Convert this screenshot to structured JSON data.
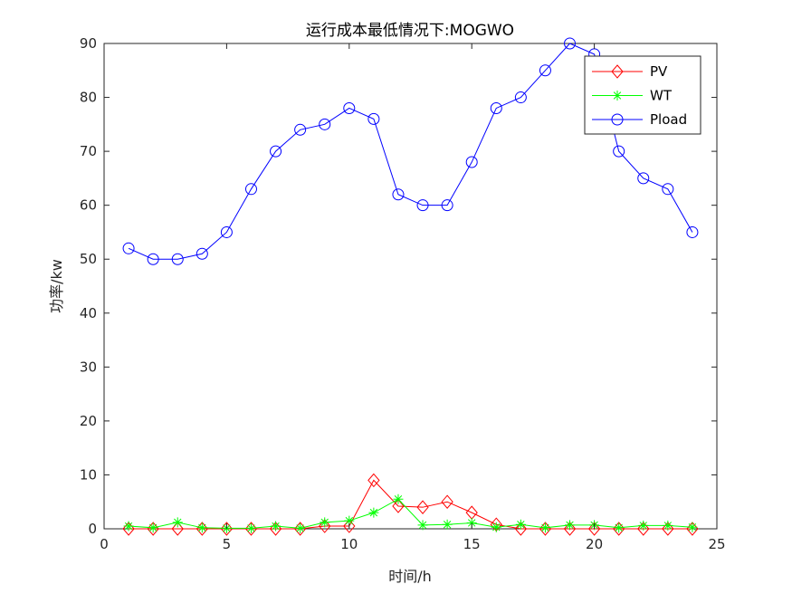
{
  "chart_data": {
    "type": "line",
    "title": "运行成本最低情况下:MOGWO",
    "xlabel": "时间/h",
    "ylabel": "功率/kw",
    "xlim": [
      0,
      25
    ],
    "ylim": [
      0,
      90
    ],
    "xticks": [
      0,
      5,
      10,
      15,
      20,
      25
    ],
    "yticks": [
      0,
      10,
      20,
      30,
      40,
      50,
      60,
      70,
      80,
      90
    ],
    "grid": false,
    "legend_position": "top-right",
    "x": [
      1,
      2,
      3,
      4,
      5,
      6,
      7,
      8,
      9,
      10,
      11,
      12,
      13,
      14,
      15,
      16,
      17,
      18,
      19,
      20,
      21,
      22,
      23,
      24
    ],
    "series": [
      {
        "name": "PV",
        "color": "#ff0000",
        "marker": "diamond",
        "values": [
          0,
          0,
          0,
          0,
          0,
          0,
          0,
          0,
          0.5,
          0.5,
          9,
          4.2,
          4,
          5,
          3,
          0.8,
          0,
          0,
          0,
          0,
          0,
          0,
          0,
          0
        ]
      },
      {
        "name": "WT",
        "color": "#00ff00",
        "marker": "asterisk",
        "values": [
          0.5,
          0.2,
          1.2,
          0.2,
          0.1,
          0.1,
          0.5,
          0.1,
          1.2,
          1.5,
          3,
          5.5,
          0.7,
          0.8,
          1.1,
          0.3,
          0.8,
          0.2,
          0.7,
          0.7,
          0.2,
          0.6,
          0.6,
          0.3
        ]
      },
      {
        "name": "Pload",
        "color": "#0000ff",
        "marker": "circle",
        "values": [
          52,
          50,
          50,
          51,
          55,
          63,
          70,
          74,
          75,
          78,
          76,
          62,
          60,
          60,
          68,
          78,
          80,
          85,
          90,
          88,
          70,
          65,
          63,
          55
        ]
      }
    ]
  }
}
